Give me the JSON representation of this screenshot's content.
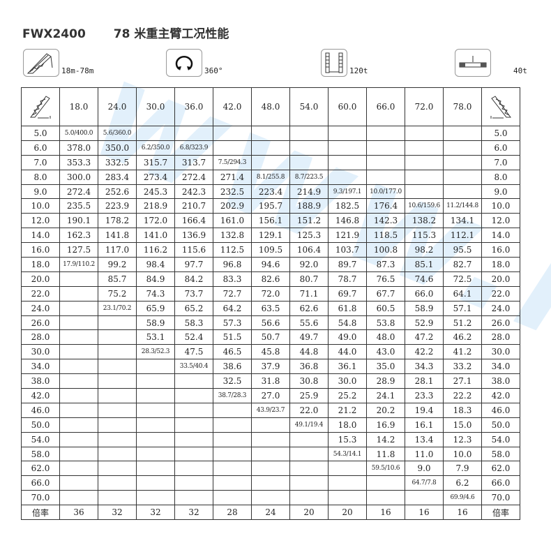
{
  "title": {
    "model": "FWX2400",
    "subtitle": "78 米重主臂工况性能"
  },
  "specs": [
    {
      "icon": "boom-icon",
      "label": "18m-78m"
    },
    {
      "icon": "rotation-360-icon",
      "label": "360°"
    },
    {
      "icon": "outrigger-icon",
      "label": "120t"
    },
    {
      "icon": "counterweight-icon",
      "label": "40t"
    }
  ],
  "watermark": "www.l",
  "table": {
    "boom_lengths": [
      "18.0",
      "24.0",
      "30.0",
      "36.0",
      "42.0",
      "48.0",
      "54.0",
      "60.0",
      "66.0",
      "72.0",
      "78.0"
    ],
    "rows": [
      {
        "radius": "5.0",
        "values": [
          "5.0/400.0",
          "5.6/360.0",
          "",
          "",
          "",
          "",
          "",
          "",
          "",
          "",
          ""
        ]
      },
      {
        "radius": "6.0",
        "values": [
          "378.0",
          "350.0",
          "6.2/350.0",
          "6.8/323.9",
          "",
          "",
          "",
          "",
          "",
          "",
          ""
        ]
      },
      {
        "radius": "7.0",
        "values": [
          "353.3",
          "332.5",
          "315.7",
          "313.7",
          "7.5/294.3",
          "",
          "",
          "",
          "",
          "",
          ""
        ]
      },
      {
        "radius": "8.0",
        "values": [
          "300.0",
          "283.4",
          "273.4",
          "272.4",
          "271.4",
          "8.1/255.8",
          "8.7/223.5",
          "",
          "",
          "",
          ""
        ]
      },
      {
        "radius": "9.0",
        "values": [
          "272.4",
          "252.6",
          "245.3",
          "242.3",
          "232.5",
          "223.4",
          "214.9",
          "9.3/197.1",
          "10.0/177.0",
          "",
          ""
        ]
      },
      {
        "radius": "10.0",
        "values": [
          "235.5",
          "223.9",
          "218.9",
          "210.7",
          "202.9",
          "195.7",
          "188.9",
          "182.5",
          "176.4",
          "10.6/159.6",
          "11.2/144.8"
        ]
      },
      {
        "radius": "12.0",
        "values": [
          "190.1",
          "178.2",
          "172.0",
          "166.4",
          "161.0",
          "156.1",
          "151.2",
          "146.8",
          "142.3",
          "138.2",
          "134.1"
        ]
      },
      {
        "radius": "14.0",
        "values": [
          "162.3",
          "141.8",
          "141.0",
          "136.9",
          "132.8",
          "129.1",
          "125.3",
          "121.9",
          "118.5",
          "115.3",
          "112.1"
        ]
      },
      {
        "radius": "16.0",
        "values": [
          "127.5",
          "117.0",
          "116.2",
          "115.6",
          "112.5",
          "109.5",
          "106.4",
          "103.7",
          "100.8",
          "98.2",
          "95.5"
        ]
      },
      {
        "radius": "18.0",
        "values": [
          "17.9/110.2",
          "99.2",
          "98.4",
          "97.7",
          "96.8",
          "94.6",
          "92.0",
          "89.7",
          "87.3",
          "85.1",
          "82.7"
        ]
      },
      {
        "radius": "20.0",
        "values": [
          "",
          "85.7",
          "84.9",
          "84.2",
          "83.3",
          "82.6",
          "80.7",
          "78.7",
          "76.5",
          "74.6",
          "72.5"
        ]
      },
      {
        "radius": "22.0",
        "values": [
          "",
          "75.2",
          "74.3",
          "73.7",
          "72.7",
          "72.0",
          "71.1",
          "69.7",
          "67.7",
          "66.0",
          "64.1"
        ]
      },
      {
        "radius": "24.0",
        "values": [
          "",
          "23.1/70.2",
          "65.9",
          "65.2",
          "64.2",
          "63.5",
          "62.6",
          "61.8",
          "60.5",
          "58.9",
          "57.1"
        ]
      },
      {
        "radius": "26.0",
        "values": [
          "",
          "",
          "58.9",
          "58.3",
          "57.3",
          "56.6",
          "55.6",
          "54.8",
          "53.8",
          "52.9",
          "51.2"
        ]
      },
      {
        "radius": "28.0",
        "values": [
          "",
          "",
          "53.1",
          "52.4",
          "51.5",
          "50.7",
          "49.7",
          "49.0",
          "48.0",
          "47.2",
          "46.2"
        ]
      },
      {
        "radius": "30.0",
        "values": [
          "",
          "",
          "28.3/52.3",
          "47.5",
          "46.5",
          "45.8",
          "44.8",
          "44.0",
          "43.0",
          "42.2",
          "41.2"
        ]
      },
      {
        "radius": "34.0",
        "values": [
          "",
          "",
          "",
          "33.5/40.4",
          "38.6",
          "37.9",
          "36.8",
          "36.1",
          "35.0",
          "34.3",
          "33.2"
        ]
      },
      {
        "radius": "38.0",
        "values": [
          "",
          "",
          "",
          "",
          "32.5",
          "31.8",
          "30.8",
          "30.0",
          "28.9",
          "28.1",
          "27.1"
        ]
      },
      {
        "radius": "42.0",
        "values": [
          "",
          "",
          "",
          "",
          "38.7/28.3",
          "27.0",
          "25.9",
          "25.2",
          "24.1",
          "23.3",
          "22.2"
        ]
      },
      {
        "radius": "46.0",
        "values": [
          "",
          "",
          "",
          "",
          "",
          "43.9/23.7",
          "22.0",
          "21.2",
          "20.2",
          "19.4",
          "18.3"
        ]
      },
      {
        "radius": "50.0",
        "values": [
          "",
          "",
          "",
          "",
          "",
          "",
          "49.1/19.4",
          "18.0",
          "16.9",
          "16.1",
          "15.0"
        ]
      },
      {
        "radius": "54.0",
        "values": [
          "",
          "",
          "",
          "",
          "",
          "",
          "",
          "15.3",
          "14.2",
          "13.4",
          "12.3"
        ]
      },
      {
        "radius": "58.0",
        "values": [
          "",
          "",
          "",
          "",
          "",
          "",
          "",
          "54.3/14.1",
          "11.8",
          "11.0",
          "10.0"
        ]
      },
      {
        "radius": "62.0",
        "values": [
          "",
          "",
          "",
          "",
          "",
          "",
          "",
          "",
          "59.5/10.6",
          "9.0",
          "7.9"
        ]
      },
      {
        "radius": "66.0",
        "values": [
          "",
          "",
          "",
          "",
          "",
          "",
          "",
          "",
          "",
          "64.7/7.8",
          "6.2"
        ]
      },
      {
        "radius": "70.0",
        "values": [
          "",
          "",
          "",
          "",
          "",
          "",
          "",
          "",
          "",
          "",
          "69.9/4.6"
        ]
      }
    ],
    "reeving": {
      "label": "倍率",
      "values": [
        "36",
        "32",
        "32",
        "32",
        "28",
        "24",
        "20",
        "20",
        "16",
        "16",
        "16"
      ]
    }
  }
}
